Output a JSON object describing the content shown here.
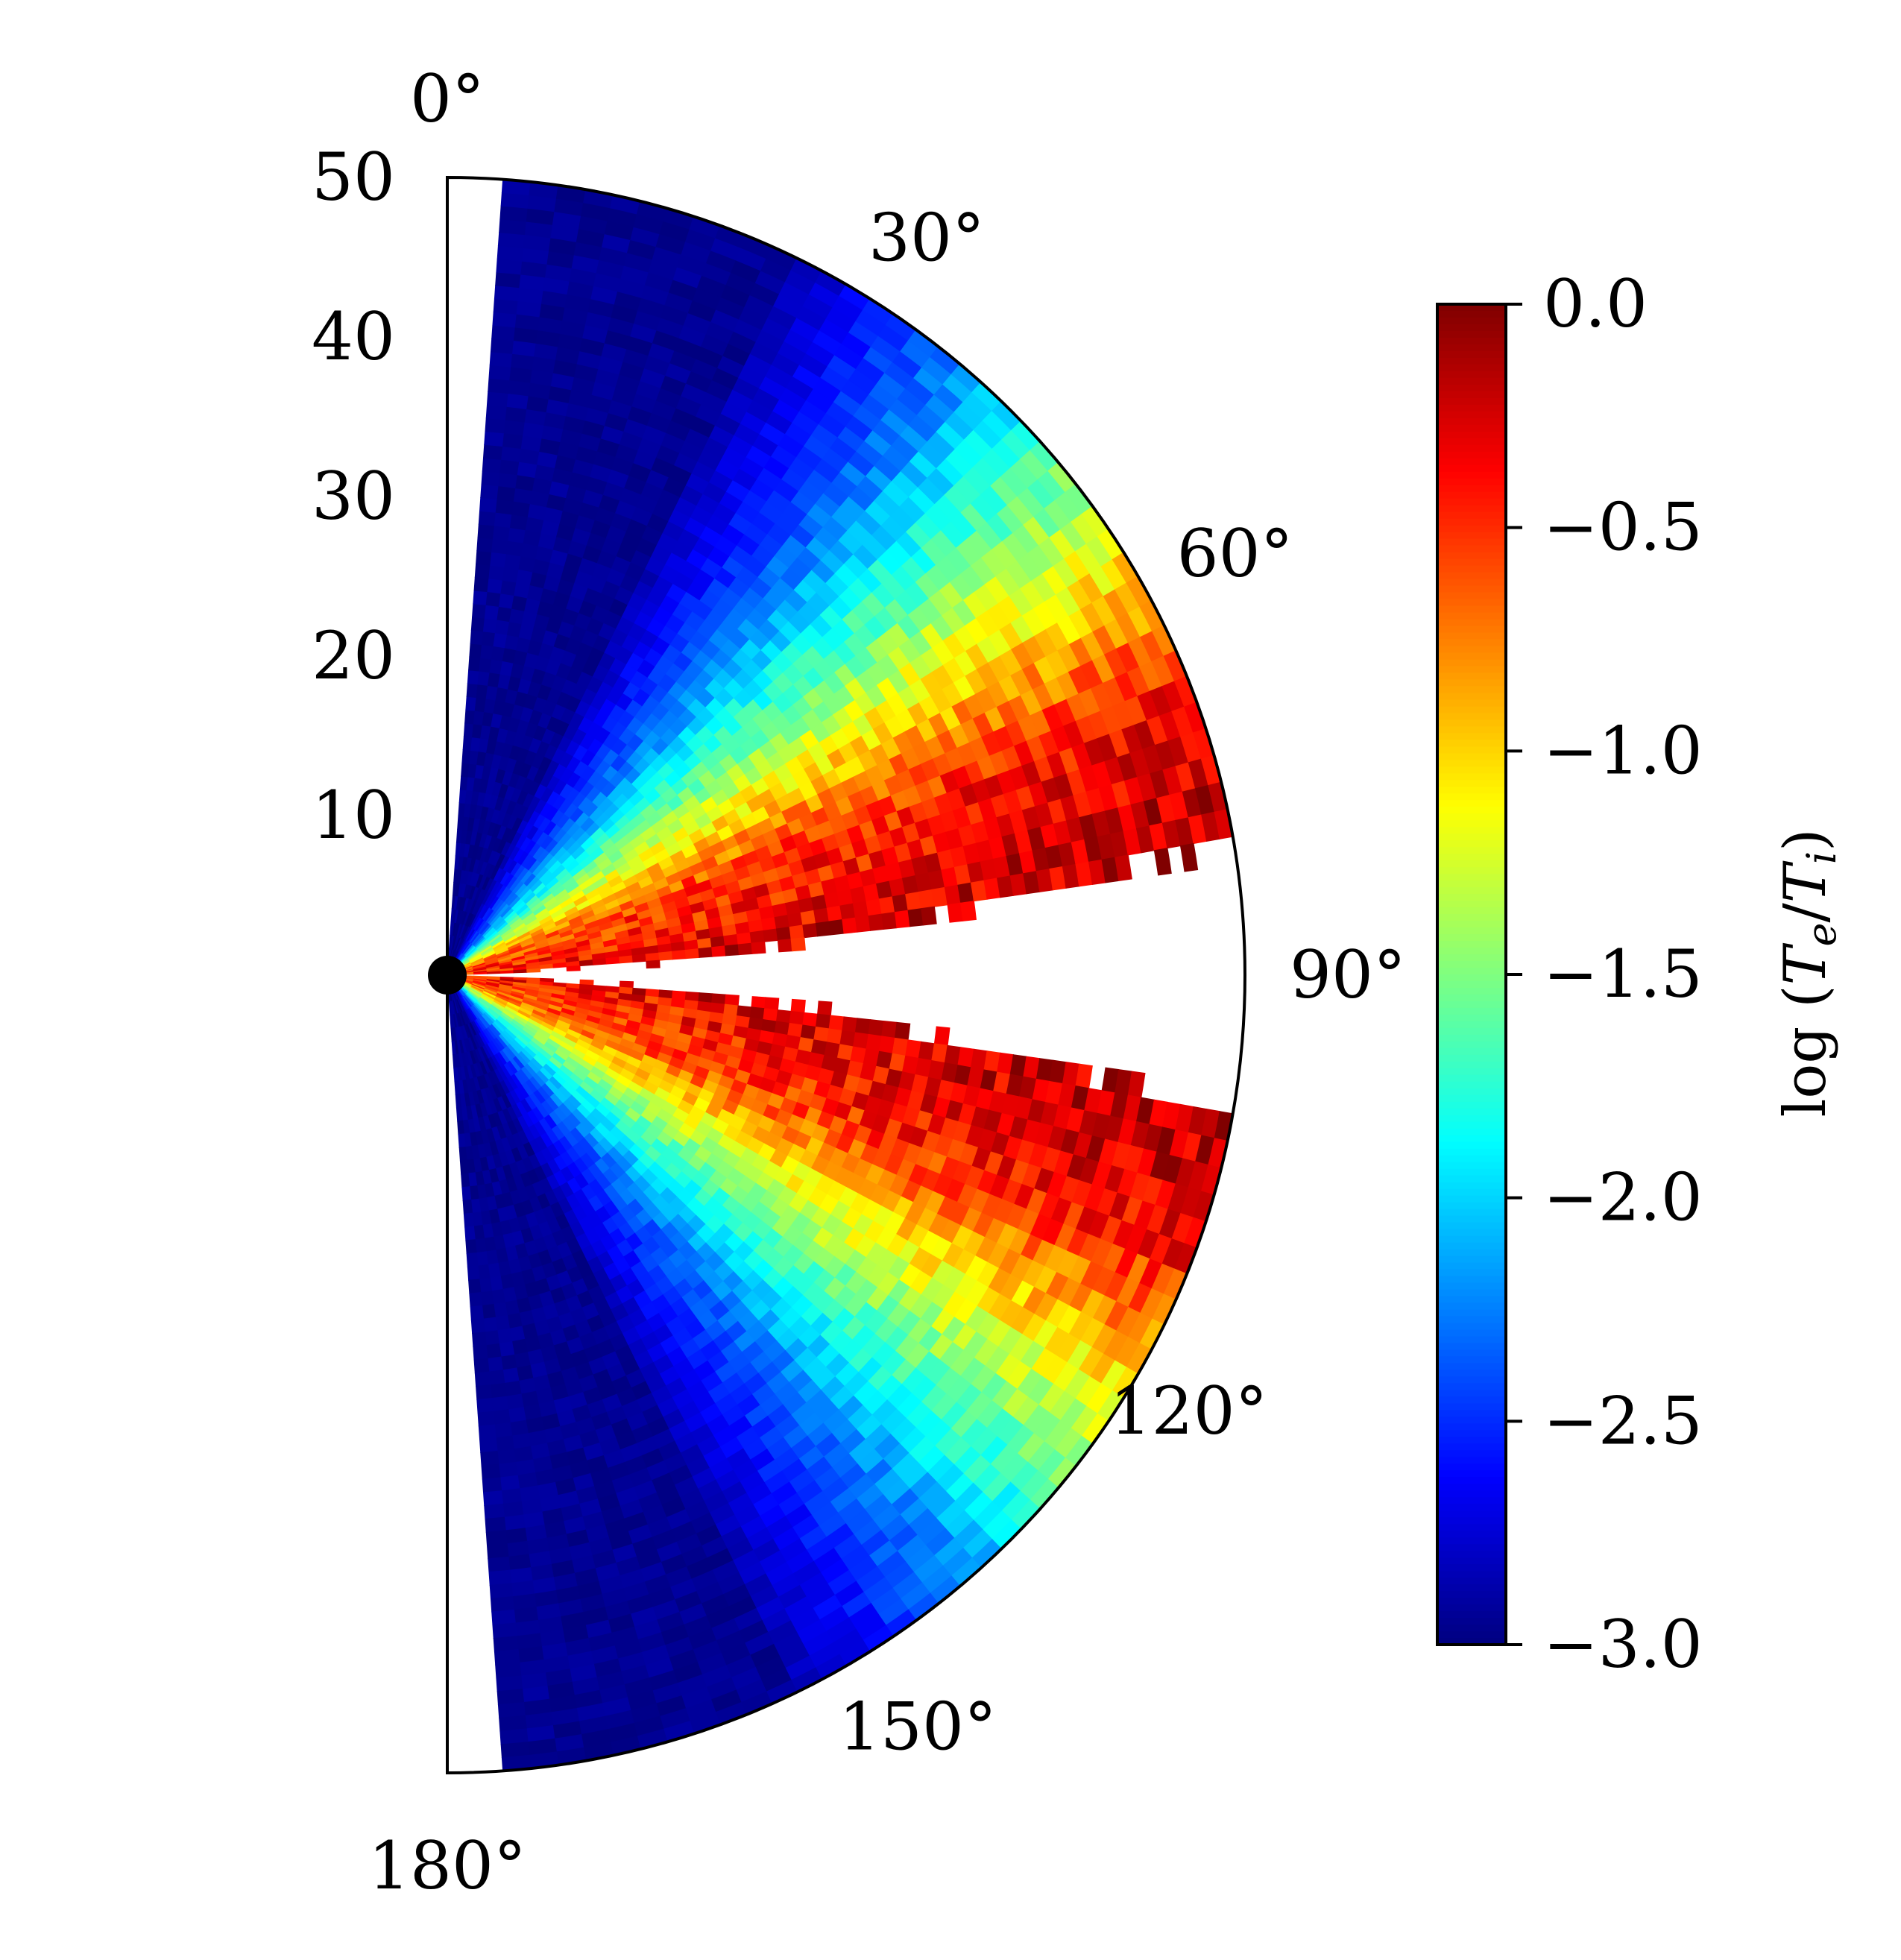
{
  "chart_data": {
    "type": "heatmap",
    "projection": "polar-half",
    "title": "",
    "radial_axis": {
      "range": [
        0,
        50
      ],
      "tick_labels": [
        "10",
        "20",
        "30",
        "40",
        "50"
      ],
      "tick_values": [
        10,
        20,
        30,
        40,
        50
      ]
    },
    "angular_axis": {
      "range_deg": [
        0,
        180
      ],
      "zero_location": "top",
      "direction": "clockwise",
      "tick_labels": [
        "0°",
        "30°",
        "60°",
        "90°",
        "120°",
        "150°",
        "180°"
      ],
      "tick_values_deg": [
        0,
        30,
        60,
        90,
        120,
        150,
        180
      ]
    },
    "colorbar": {
      "label": "log (Te/Ti)",
      "label_parts": {
        "prefix": "log ",
        "t1": "T",
        "s1": "e",
        "slash": "/",
        "t2": "T",
        "s2": "i"
      },
      "range": [
        -3.0,
        0.0
      ],
      "colormap": "jet",
      "tick_labels": [
        "0.0",
        "−0.5",
        "−1.0",
        "−1.5",
        "−2.0",
        "−2.5",
        "−3.0"
      ],
      "tick_values": [
        0.0,
        -0.5,
        -1.0,
        -1.5,
        -2.0,
        -2.5,
        -3.0
      ]
    },
    "field_description": {
      "equatorial_hot_value": -0.1,
      "polar_cold_value": -3.0,
      "empty_wedges_deg": [
        [
          0,
          4.5
        ],
        [
          175.5,
          180
        ]
      ],
      "empty_equator_band": true
    },
    "grid": false,
    "black_hole_marker": true
  }
}
